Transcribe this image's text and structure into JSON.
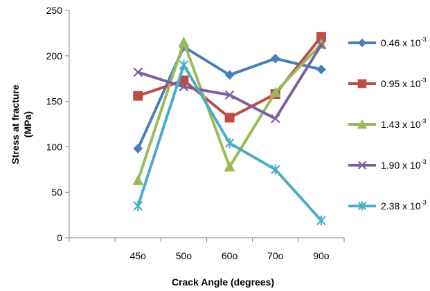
{
  "chart_data": {
    "type": "line",
    "xlabel": "Crack Angle (degrees)",
    "ylabel_lines": [
      "Stress at fracture",
      "(MPa)"
    ],
    "ylim": [
      0,
      250
    ],
    "yticks": [
      0,
      50,
      100,
      150,
      200,
      250
    ],
    "categories": [
      "",
      "45o",
      "50o",
      "60o",
      "70o",
      "90o"
    ],
    "grid": false,
    "legend_position": "right",
    "series": [
      {
        "name": "0.46 x 10-3",
        "base": "0.46 x 10",
        "exp": "-3",
        "color": "#4a7ebb",
        "marker": "diamond",
        "values": [
          null,
          98,
          210,
          179,
          197,
          185
        ]
      },
      {
        "name": "0.95 x 10-3",
        "base": "0.95 x 10",
        "exp": "-3",
        "color": "#be4b48",
        "marker": "square",
        "values": [
          null,
          156,
          173,
          132,
          158,
          221
        ]
      },
      {
        "name": "1.43 x 10-3",
        "base": "1.43 x 10",
        "exp": "-3",
        "color": "#9bbb59",
        "marker": "triangle",
        "values": [
          null,
          63,
          215,
          78,
          160,
          213
        ]
      },
      {
        "name": "1.90 x 10-3",
        "base": "1.90 x 10",
        "exp": "-3",
        "color": "#7d5fa0",
        "marker": "x",
        "values": [
          null,
          182,
          166,
          157,
          131,
          212
        ]
      },
      {
        "name": "2.38 x 10-3",
        "base": "2.38 x 10",
        "exp": "-3",
        "color": "#4bacc6",
        "marker": "star",
        "values": [
          null,
          35,
          190,
          104,
          75,
          19
        ]
      }
    ]
  }
}
